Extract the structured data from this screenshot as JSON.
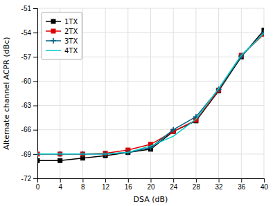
{
  "chart_data": {
    "type": "line",
    "xlabel": "DSA (dB)",
    "ylabel": "Alternate channel ACPR (dBc)",
    "x": [
      0,
      4,
      8,
      12,
      16,
      20,
      24,
      28,
      32,
      36,
      40
    ],
    "series": [
      {
        "name": "1TX",
        "color": "#000000",
        "marker": "square",
        "values": [
          -69.8,
          -69.8,
          -69.5,
          -69.2,
          -68.8,
          -68.4,
          -66.2,
          -64.9,
          -61.2,
          -57.0,
          -53.7
        ]
      },
      {
        "name": "2TX",
        "color": "#dd0000",
        "marker": "square",
        "values": [
          -69.0,
          -69.0,
          -69.0,
          -68.9,
          -68.5,
          -67.8,
          -66.2,
          -64.8,
          -61.1,
          -56.8,
          -54.2
        ]
      },
      {
        "name": "3TX",
        "color": "#006080",
        "marker": "plus",
        "values": [
          -69.0,
          -69.0,
          -69.0,
          -69.0,
          -68.8,
          -68.2,
          -66.0,
          -64.4,
          -61.0,
          -56.9,
          -54.0
        ]
      },
      {
        "name": "4TX",
        "color": "#00c8c8",
        "values": [
          -69.0,
          -69.0,
          -69.0,
          -69.0,
          -68.8,
          -68.0,
          -66.8,
          -64.7,
          -60.9,
          -56.8,
          -54.1
        ]
      }
    ],
    "xlim": [
      0,
      40
    ],
    "ylim": [
      -72,
      -51
    ],
    "xticks": [
      0,
      4,
      8,
      12,
      16,
      20,
      24,
      28,
      32,
      36,
      40
    ],
    "yticks": [
      -72,
      -69,
      -66,
      -63,
      -60,
      -57,
      -54,
      -51
    ],
    "grid": true,
    "legend": "upper-left"
  }
}
